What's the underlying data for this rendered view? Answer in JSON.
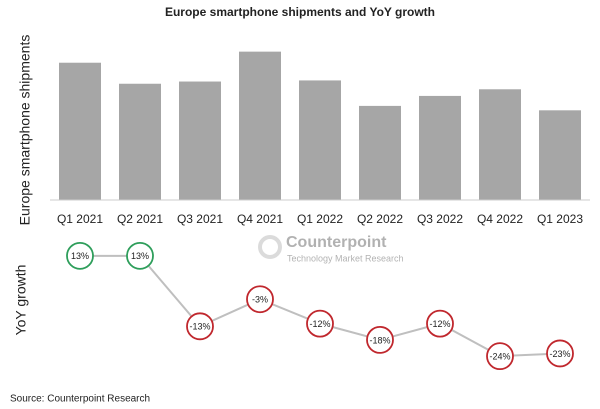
{
  "chart_data": [
    {
      "type": "bar",
      "title": "Europe smartphone shipments and YoY growth",
      "y_label": "Europe smartphone shipments",
      "categories": [
        "Q1 2021",
        "Q2 2021",
        "Q3 2021",
        "Q4 2021",
        "Q1 2022",
        "Q2 2022",
        "Q3 2022",
        "Q4 2022",
        "Q1 2023"
      ],
      "values": [
        124,
        105,
        107,
        134,
        108,
        85,
        94,
        100,
        81
      ],
      "color": "#a6a6a6",
      "ylim": [
        0,
        140
      ]
    },
    {
      "type": "line",
      "y_label": "YoY growth",
      "values": [
        13,
        13,
        -13,
        -3,
        -12,
        -18,
        -12,
        -24,
        -23
      ],
      "value_labels": [
        "13%",
        "13%",
        "-13%",
        "-3%",
        "-12%",
        "-18%",
        "-12%",
        "-24%",
        "-23%"
      ],
      "color": "#bfbfbf",
      "positive_color": "#2e9e5b",
      "negative_color": "#c0272d",
      "ylim": [
        -28,
        17
      ]
    }
  ],
  "watermark": {
    "name": "Counterpoint",
    "tagline": "Technology Market Research"
  },
  "source": "Source: Counterpoint Research"
}
